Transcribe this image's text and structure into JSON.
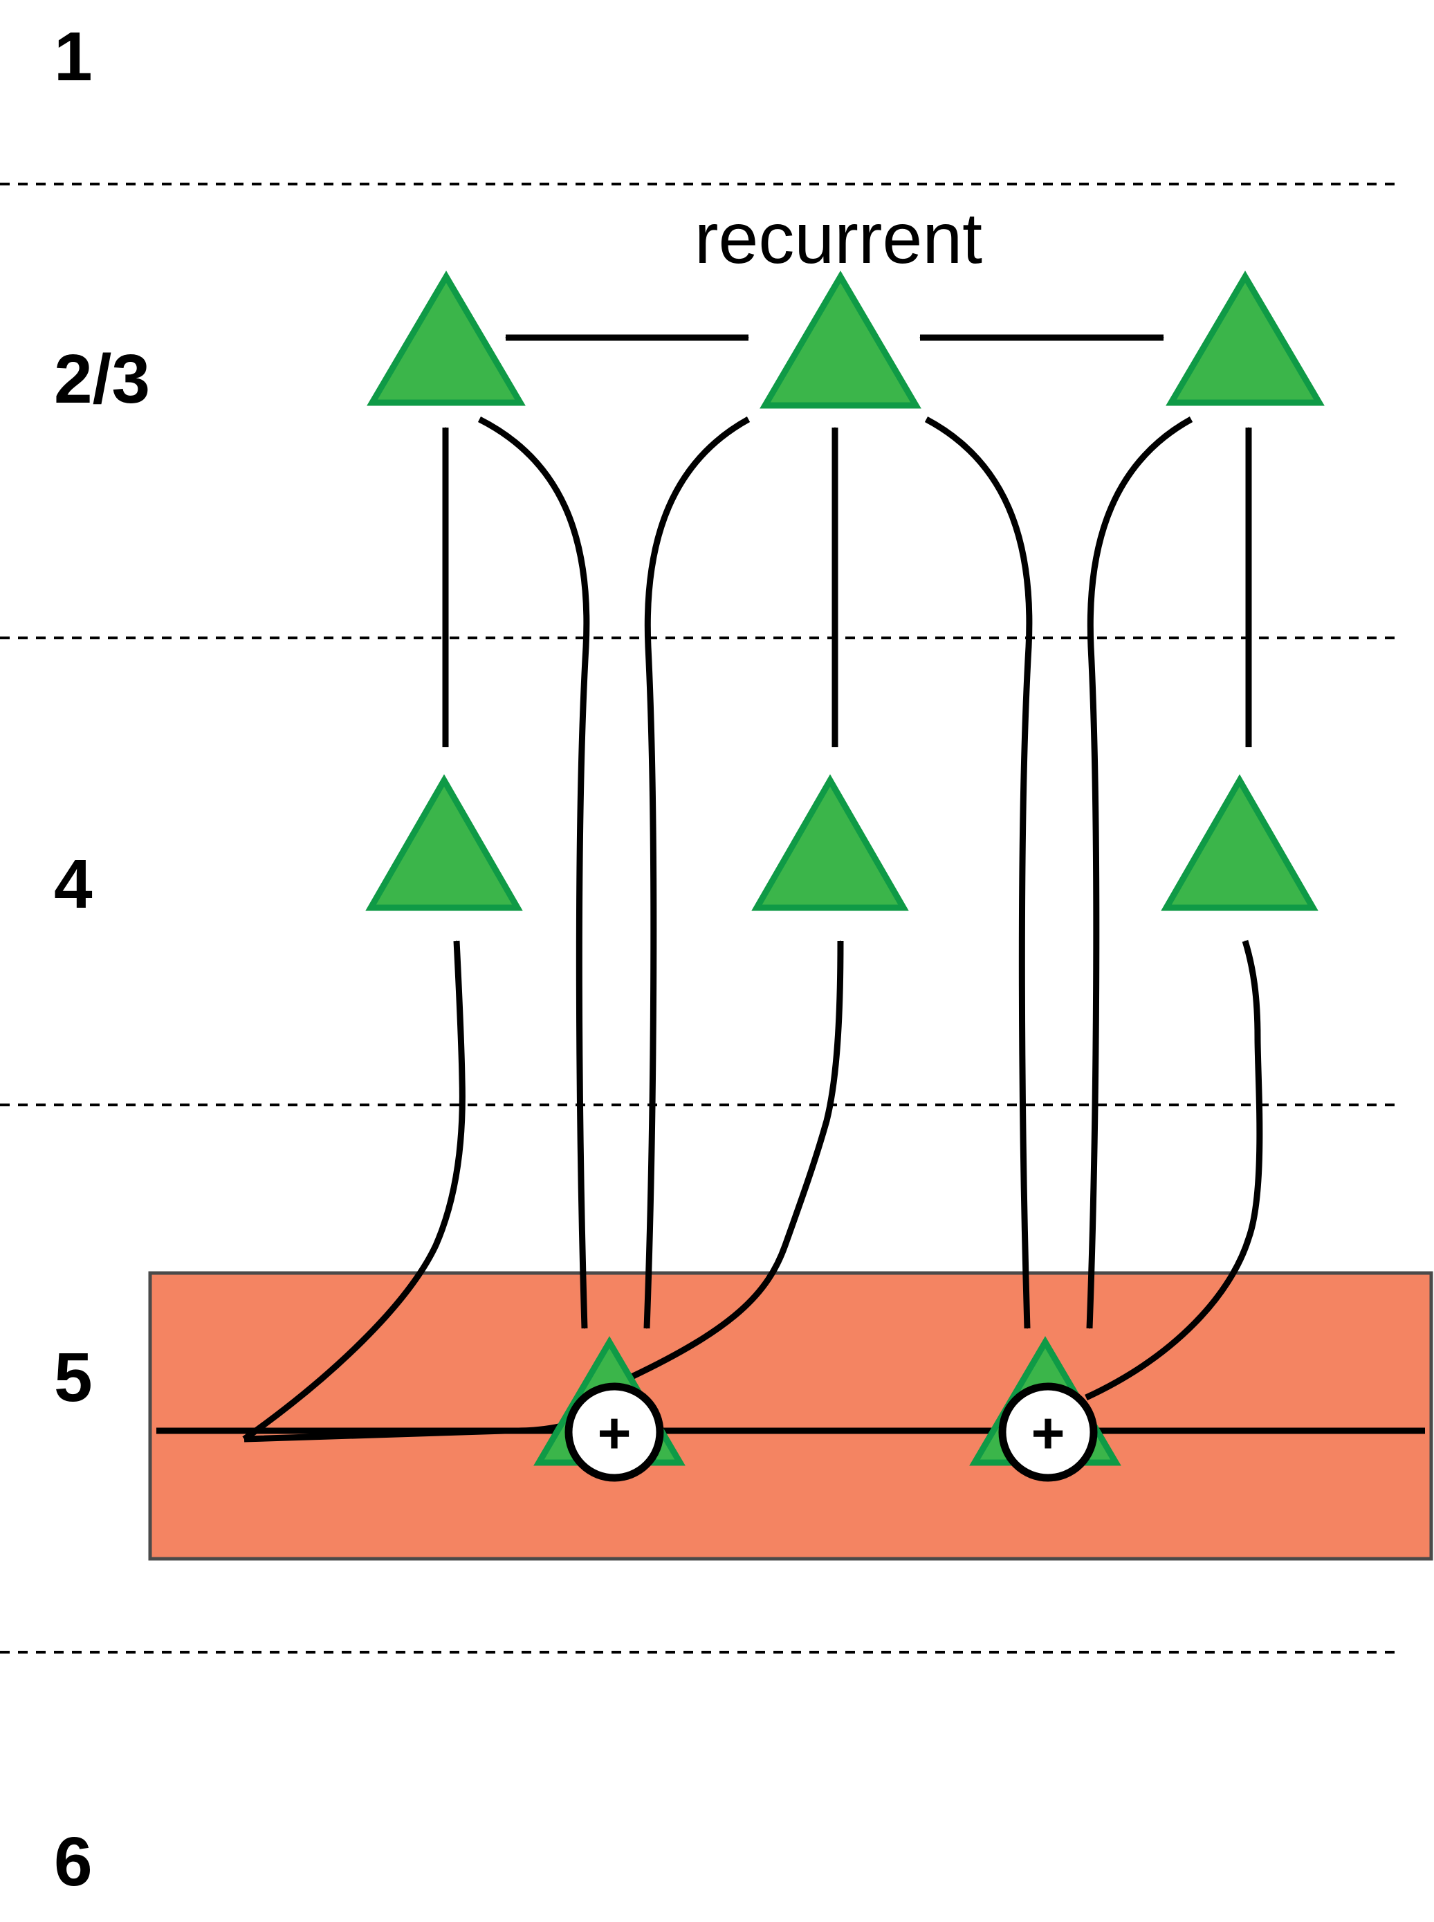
{
  "layers": {
    "l1": "1",
    "l23": "2/3",
    "l4": "4",
    "l5": "5",
    "l6": "6"
  },
  "annotations": {
    "recurrent": "recurrent",
    "sum_symbol": "+"
  },
  "colors": {
    "neuron_fill": "#3bb54a",
    "neuron_stroke": "#0f9a46",
    "layer5_fill": "#f48462",
    "layer5_stroke": "#4a4a4a"
  }
}
